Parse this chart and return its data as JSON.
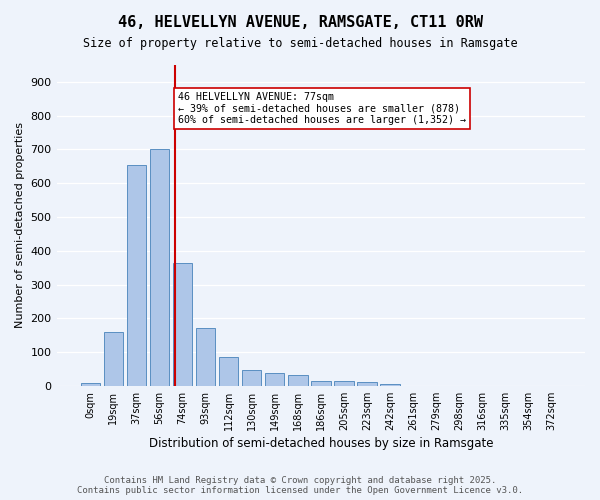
{
  "title1": "46, HELVELLYN AVENUE, RAMSGATE, CT11 0RW",
  "title2": "Size of property relative to semi-detached houses in Ramsgate",
  "xlabel": "Distribution of semi-detached houses by size in Ramsgate",
  "ylabel": "Number of semi-detached properties",
  "bin_labels": [
    "0sqm",
    "19sqm",
    "37sqm",
    "56sqm",
    "74sqm",
    "93sqm",
    "112sqm",
    "130sqm",
    "149sqm",
    "168sqm",
    "186sqm",
    "205sqm",
    "223sqm",
    "242sqm",
    "261sqm",
    "279sqm",
    "298sqm",
    "316sqm",
    "335sqm",
    "354sqm",
    "372sqm"
  ],
  "bar_values": [
    8,
    160,
    655,
    700,
    365,
    170,
    85,
    48,
    37,
    32,
    15,
    13,
    10,
    5,
    0,
    0,
    0,
    0,
    0,
    0,
    0
  ],
  "bar_color": "#aec6e8",
  "bar_edge_color": "#5a8fc2",
  "property_value": 77,
  "property_label": "46 HELVELLYN AVENUE: 77sqm",
  "annotation_line1": "← 39% of semi-detached houses are smaller (878)",
  "annotation_line2": "60% of semi-detached houses are larger (1,352) →",
  "vline_color": "#cc0000",
  "annotation_box_edge": "#cc0000",
  "ylim": [
    0,
    950
  ],
  "yticks": [
    0,
    100,
    200,
    300,
    400,
    500,
    600,
    700,
    800,
    900
  ],
  "footer_line1": "Contains HM Land Registry data © Crown copyright and database right 2025.",
  "footer_line2": "Contains public sector information licensed under the Open Government Licence v3.0.",
  "bg_color": "#eef3fb",
  "plot_bg_color": "#eef3fb"
}
